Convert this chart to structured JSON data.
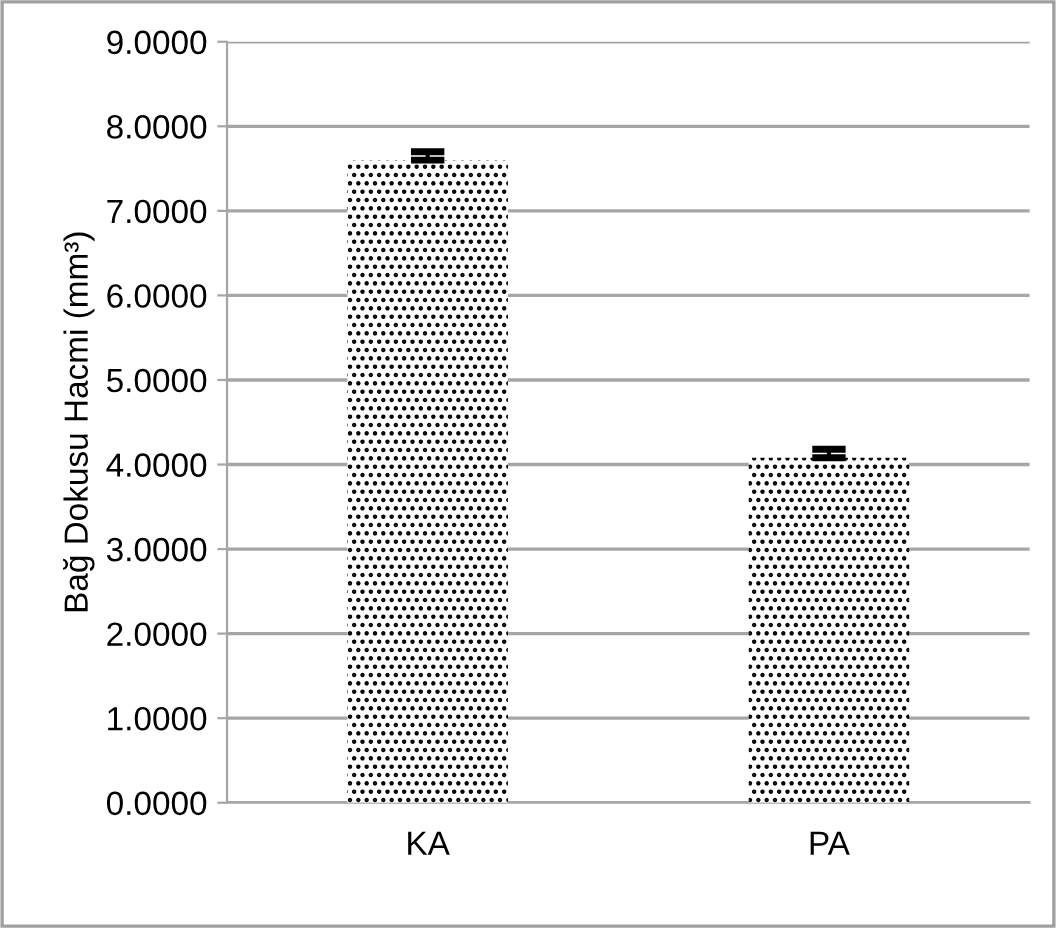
{
  "chart_data": {
    "type": "bar",
    "ylabel": "Bağ Dokusu Hacmi (mm³)",
    "categories": [
      "KA",
      "PA"
    ],
    "series": [
      {
        "color": "#000000",
        "values": [
          7.6,
          4.08
        ],
        "errors": [
          [
            7.6,
            7.7
          ],
          [
            4.08,
            4.18
          ]
        ]
      }
    ],
    "ylim": [
      0,
      9
    ],
    "yticks": [
      {
        "value": 0,
        "label": "0.0000"
      },
      {
        "value": 1,
        "label": "1.0000"
      },
      {
        "value": 2,
        "label": "2.0000"
      },
      {
        "value": 3,
        "label": "3.0000"
      },
      {
        "value": 4,
        "label": "4.0000"
      },
      {
        "value": 5,
        "label": "5.0000"
      },
      {
        "value": 6,
        "label": "6.0000"
      },
      {
        "value": 7,
        "label": "7.0000"
      },
      {
        "value": 8,
        "label": "8.0000"
      },
      {
        "value": 9,
        "label": "9.0000"
      }
    ],
    "grid": "y",
    "legend": false
  }
}
